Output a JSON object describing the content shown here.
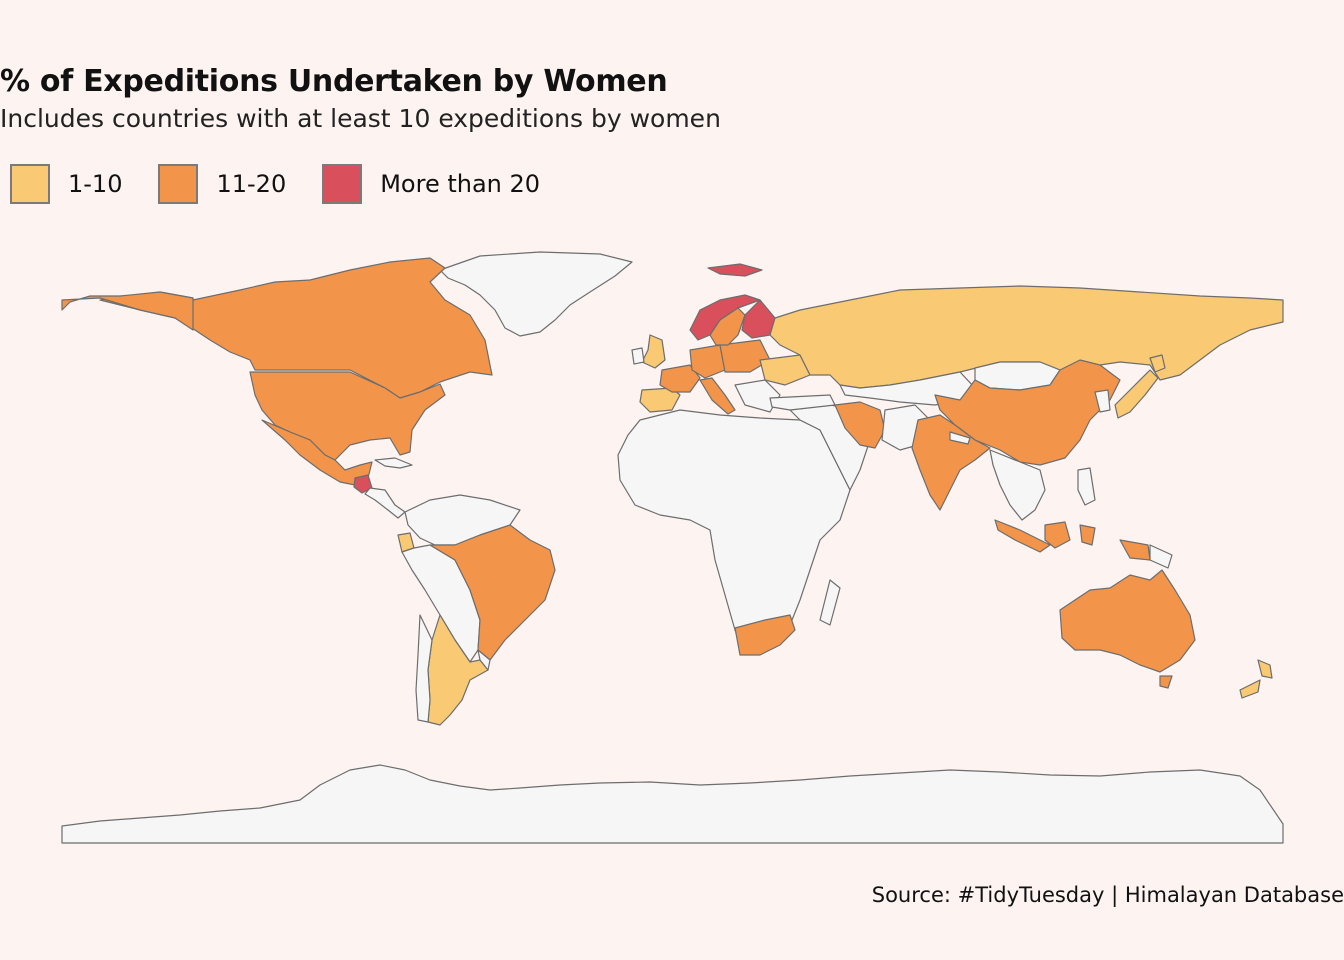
{
  "header": {
    "title": "% of Expeditions Undertaken by Women",
    "subtitle": "Includes countries with at least 10 expeditions by women"
  },
  "legend": {
    "items": [
      {
        "label": "1-10",
        "color": "#f9c974"
      },
      {
        "label": "11-20",
        "color": "#f2954b"
      },
      {
        "label": "More than 20",
        "color": "#d9505c"
      }
    ],
    "no_data_color": "#f6f6f6"
  },
  "map": {
    "projection": "equirectangular",
    "countries": [
      {
        "name": "Canada",
        "category": "11-20"
      },
      {
        "name": "United States",
        "category": "11-20"
      },
      {
        "name": "Mexico",
        "category": "11-20"
      },
      {
        "name": "Guatemala",
        "category": "More than 20"
      },
      {
        "name": "Ecuador",
        "category": "1-10"
      },
      {
        "name": "Brazil",
        "category": "11-20"
      },
      {
        "name": "Argentina",
        "category": "1-10"
      },
      {
        "name": "United Kingdom",
        "category": "1-10"
      },
      {
        "name": "Spain",
        "category": "1-10"
      },
      {
        "name": "France",
        "category": "11-20"
      },
      {
        "name": "Germany",
        "category": "11-20"
      },
      {
        "name": "Italy",
        "category": "11-20"
      },
      {
        "name": "Norway",
        "category": "More than 20"
      },
      {
        "name": "Sweden",
        "category": "11-20"
      },
      {
        "name": "Finland",
        "category": "More than 20"
      },
      {
        "name": "Poland",
        "category": "11-20"
      },
      {
        "name": "Russia",
        "category": "1-10"
      },
      {
        "name": "Iran",
        "category": "11-20"
      },
      {
        "name": "India",
        "category": "11-20"
      },
      {
        "name": "China",
        "category": "11-20"
      },
      {
        "name": "Japan",
        "category": "1-10"
      },
      {
        "name": "Indonesia",
        "category": "11-20"
      },
      {
        "name": "Australia",
        "category": "11-20"
      },
      {
        "name": "New Zealand",
        "category": "1-10"
      },
      {
        "name": "South Africa",
        "category": "11-20"
      }
    ]
  },
  "footer": {
    "source": "Source: #TidyTuesday | Himalayan Database"
  }
}
